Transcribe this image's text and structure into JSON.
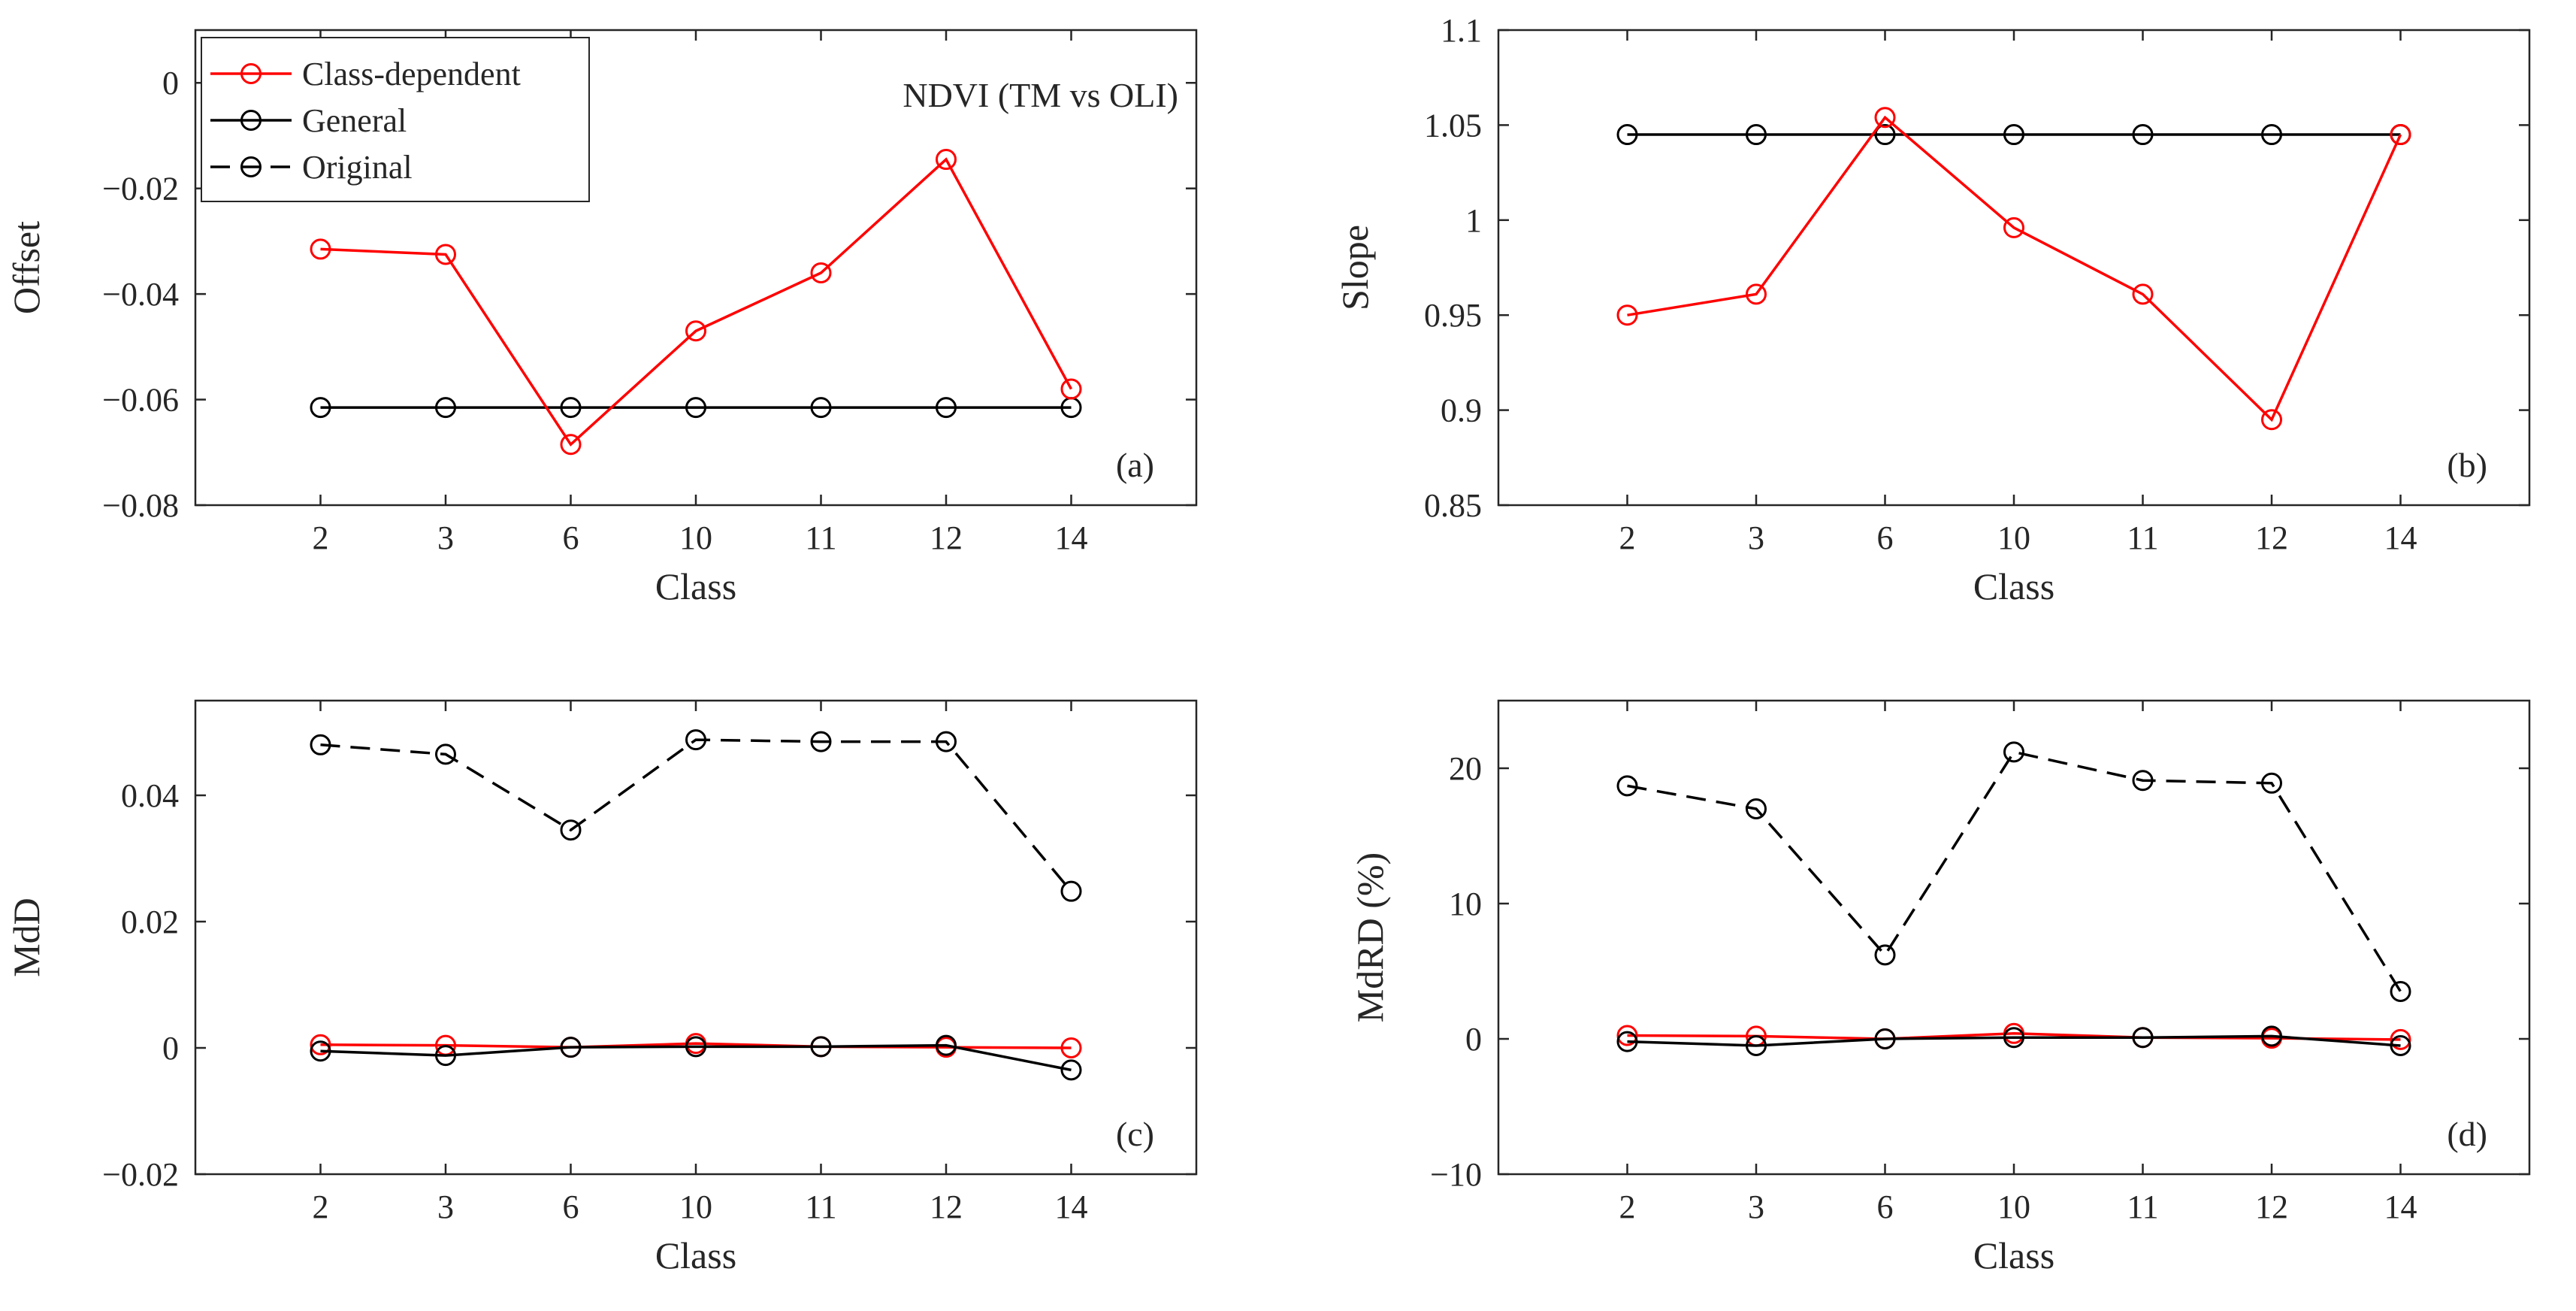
{
  "chart_data": [
    {
      "id": "a",
      "type": "line",
      "panel_label": "(a)",
      "annotation": "NDVI (TM vs OLI)",
      "xlabel": "Class",
      "ylabel": "Offset",
      "categories": [
        "2",
        "3",
        "6",
        "10",
        "11",
        "12",
        "14"
      ],
      "ylim": [
        -0.08,
        0.01
      ],
      "yticks": [
        -0.08,
        -0.06,
        -0.04,
        -0.02,
        0
      ],
      "ytick_labels": [
        "-0.08",
        "-0.06",
        "-0.04",
        "-0.02",
        "0"
      ],
      "legend": {
        "position": "top-left",
        "entries": [
          {
            "label": "Class-dependent",
            "color": "#ff0000",
            "dash": "solid"
          },
          {
            "label": "General",
            "color": "#000000",
            "dash": "solid"
          },
          {
            "label": "Original",
            "color": "#000000",
            "dash": "dashed"
          }
        ]
      },
      "series": [
        {
          "name": "General",
          "color": "#000000",
          "dash": "solid",
          "values": [
            -0.0615,
            -0.0615,
            -0.0615,
            -0.0615,
            -0.0615,
            -0.0615,
            -0.0615
          ]
        },
        {
          "name": "Class-dependent",
          "color": "#ff0000",
          "dash": "solid",
          "values": [
            -0.0315,
            -0.0325,
            -0.0685,
            -0.047,
            -0.036,
            -0.0145,
            -0.058
          ]
        }
      ]
    },
    {
      "id": "b",
      "type": "line",
      "panel_label": "(b)",
      "xlabel": "Class",
      "ylabel": "Slope",
      "categories": [
        "2",
        "3",
        "6",
        "10",
        "11",
        "12",
        "14"
      ],
      "ylim": [
        0.85,
        1.1
      ],
      "yticks": [
        0.85,
        0.9,
        0.95,
        1.0,
        1.05,
        1.1
      ],
      "ytick_labels": [
        "0.85",
        "0.9",
        "0.95",
        "1",
        "1.05",
        "1.1"
      ],
      "series": [
        {
          "name": "General",
          "color": "#000000",
          "dash": "solid",
          "values": [
            1.045,
            1.045,
            1.045,
            1.045,
            1.045,
            1.045,
            1.045
          ]
        },
        {
          "name": "Class-dependent",
          "color": "#ff0000",
          "dash": "solid",
          "values": [
            0.95,
            0.961,
            1.054,
            0.996,
            0.961,
            0.895,
            1.045
          ]
        }
      ]
    },
    {
      "id": "c",
      "type": "line",
      "panel_label": "(c)",
      "xlabel": "Class",
      "ylabel": "MdD",
      "categories": [
        "2",
        "3",
        "6",
        "10",
        "11",
        "12",
        "14"
      ],
      "ylim": [
        -0.02,
        0.055
      ],
      "yticks": [
        -0.02,
        0,
        0.02,
        0.04
      ],
      "ytick_labels": [
        "-0.02",
        "0",
        "0.02",
        "0.04"
      ],
      "series": [
        {
          "name": "Original",
          "color": "#000000",
          "dash": "dashed",
          "values": [
            0.048,
            0.0465,
            0.0345,
            0.0488,
            0.0485,
            0.0485,
            0.0248
          ]
        },
        {
          "name": "Class-dependent",
          "color": "#ff0000",
          "dash": "solid",
          "values": [
            0.0005,
            0.0004,
            0.0001,
            0.0007,
            0.0002,
            0.0001,
            0.0
          ]
        },
        {
          "name": "General",
          "color": "#000000",
          "dash": "solid",
          "values": [
            -0.0005,
            -0.0012,
            0.0001,
            0.0002,
            0.0002,
            0.0004,
            -0.0035
          ]
        }
      ]
    },
    {
      "id": "d",
      "type": "line",
      "panel_label": "(d)",
      "xlabel": "Class",
      "ylabel": "MdRD (%)",
      "categories": [
        "2",
        "3",
        "6",
        "10",
        "11",
        "12",
        "14"
      ],
      "ylim": [
        -10,
        25
      ],
      "yticks": [
        -10,
        0,
        10,
        20
      ],
      "ytick_labels": [
        "-10",
        "0",
        "10",
        "20"
      ],
      "series": [
        {
          "name": "Original",
          "color": "#000000",
          "dash": "dashed",
          "values": [
            18.7,
            17.0,
            6.2,
            21.2,
            19.1,
            18.9,
            3.5
          ]
        },
        {
          "name": "Class-dependent",
          "color": "#ff0000",
          "dash": "solid",
          "values": [
            0.25,
            0.2,
            0.0,
            0.4,
            0.1,
            0.05,
            -0.05
          ]
        },
        {
          "name": "General",
          "color": "#000000",
          "dash": "solid",
          "values": [
            -0.2,
            -0.5,
            0.0,
            0.1,
            0.1,
            0.2,
            -0.5
          ]
        }
      ]
    }
  ]
}
